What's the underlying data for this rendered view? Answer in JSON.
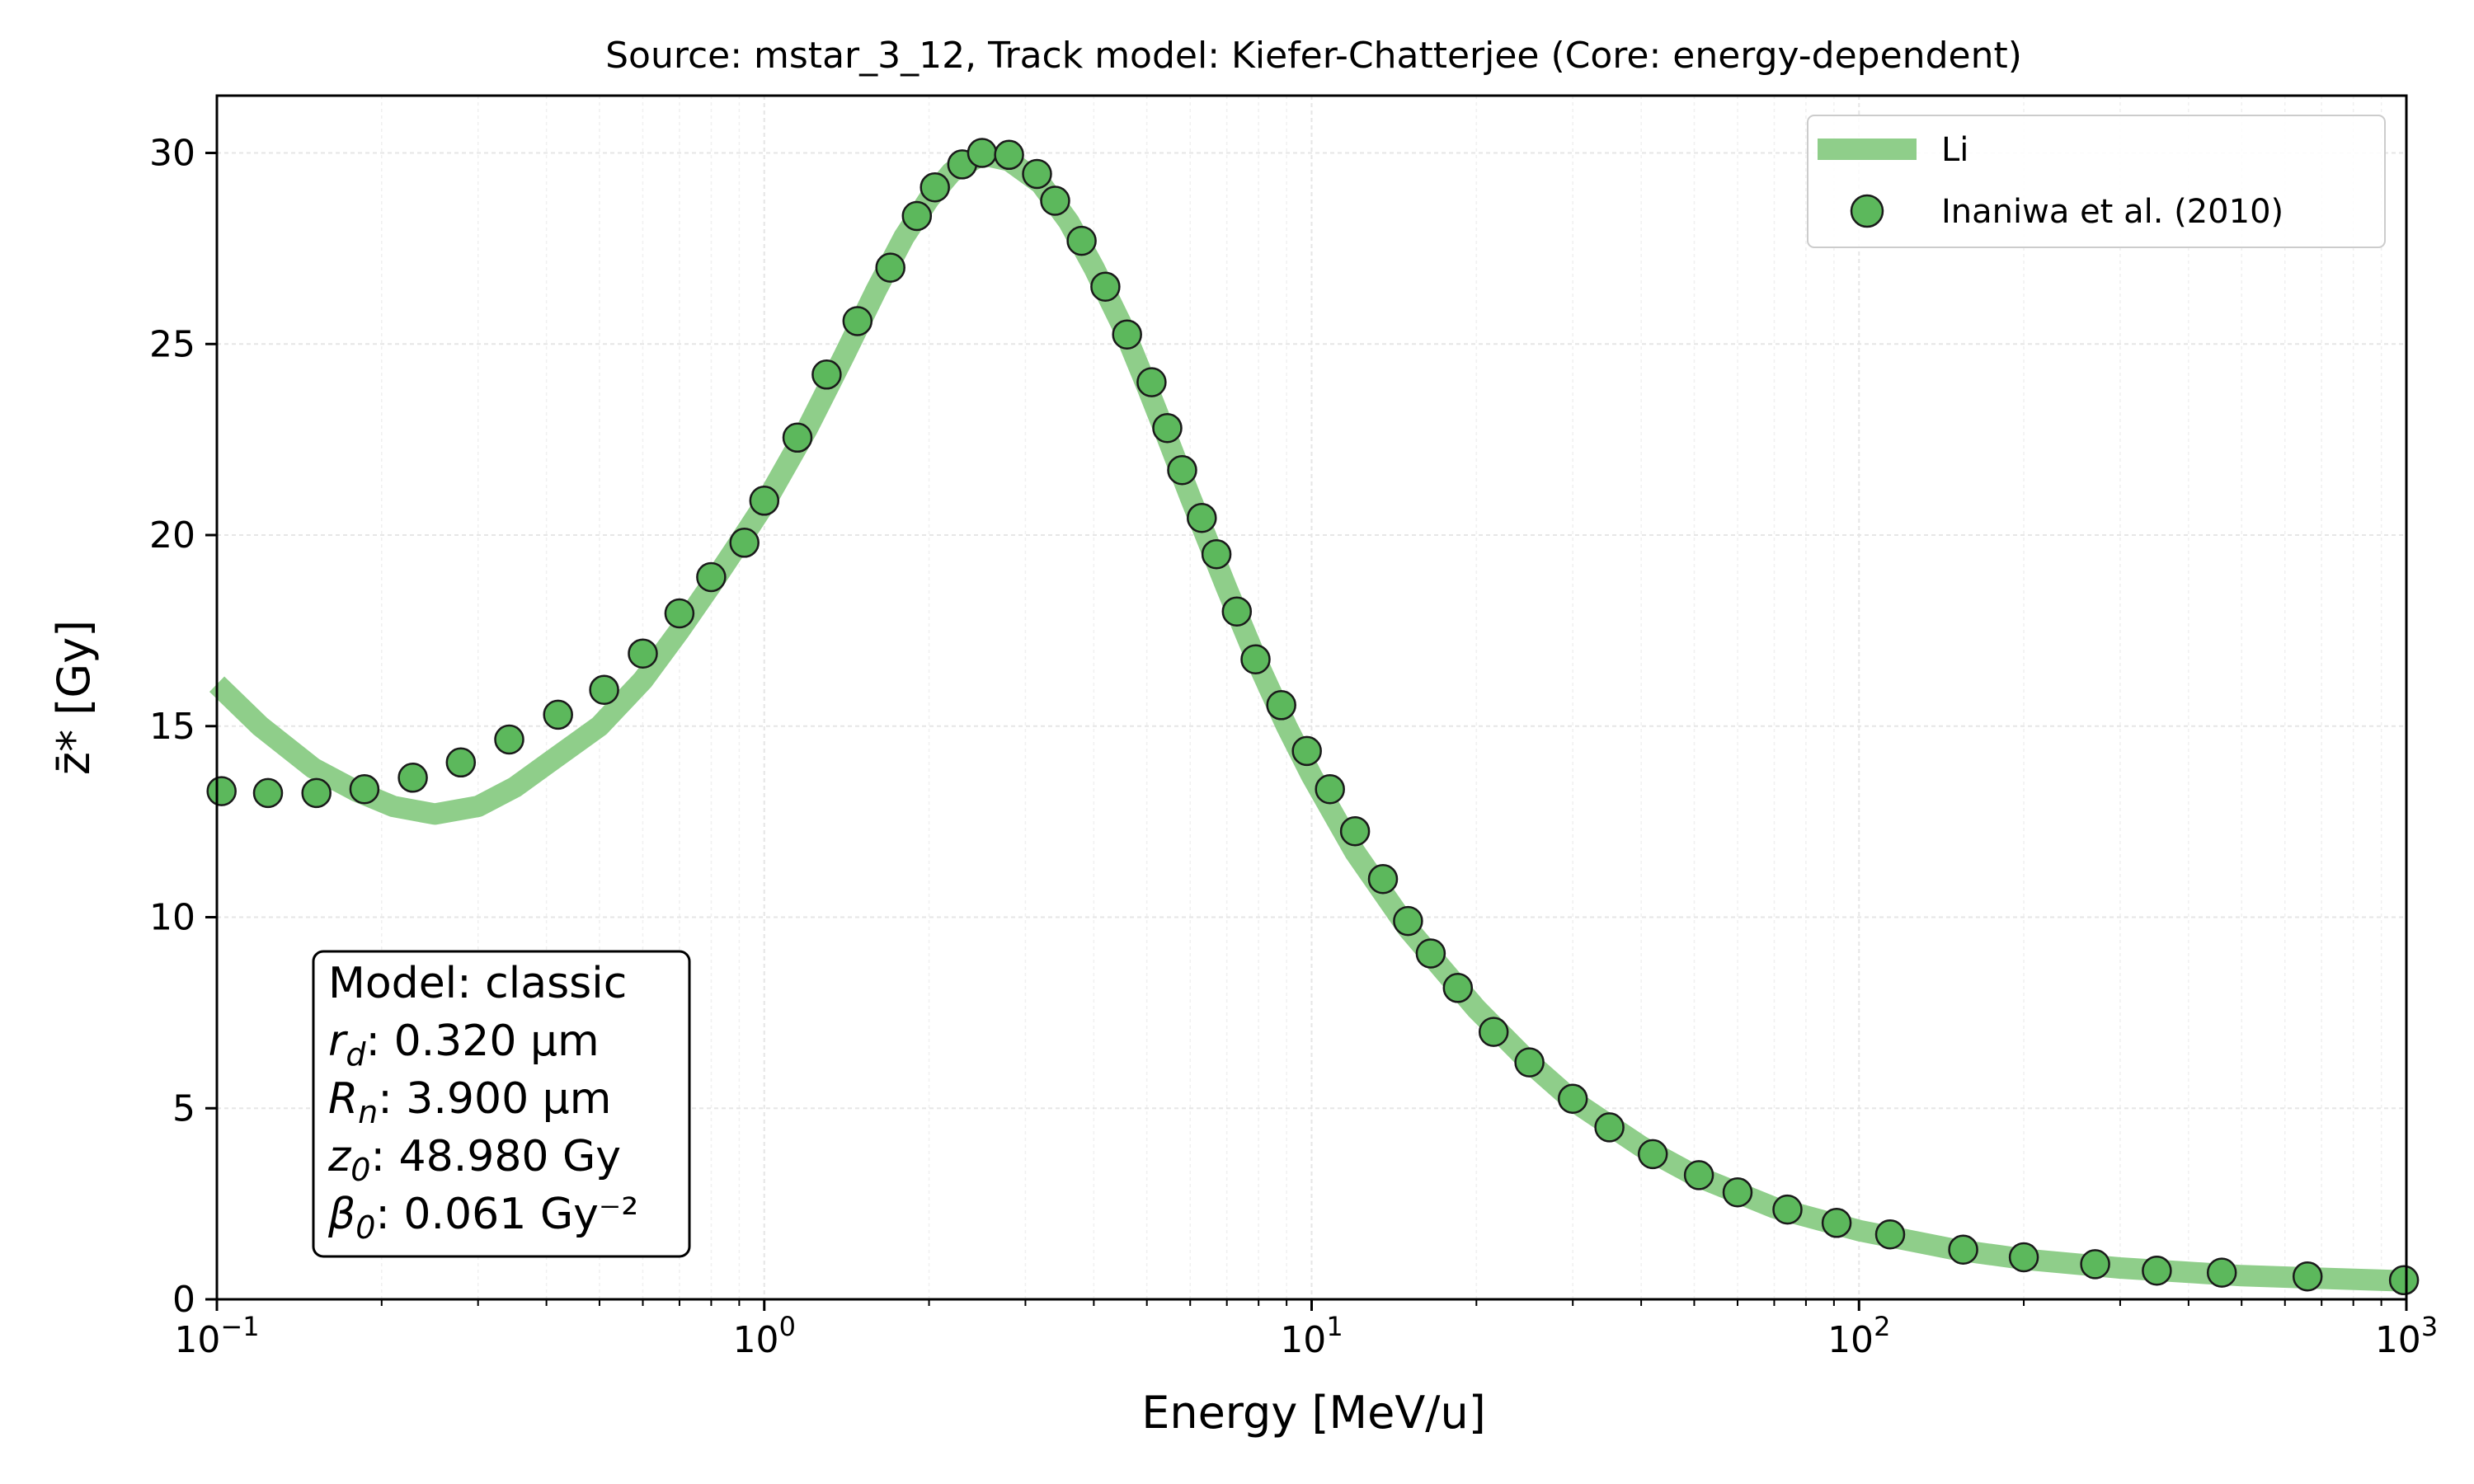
{
  "chart_data": {
    "type": "line",
    "title": "Source: mstar_3_12, Track model: Kiefer-Chatterjee (Core: energy-dependent)",
    "xlabel": "Energy [MeV/u]",
    "ylabel": "z̄* [Gy]",
    "x_scale": "log",
    "xlim": [
      0.1,
      1000
    ],
    "ylim": [
      0,
      31.5
    ],
    "x_ticks": [
      {
        "value": 0.1,
        "base": "10",
        "exp": "−1"
      },
      {
        "value": 1,
        "base": "10",
        "exp": "0"
      },
      {
        "value": 10,
        "base": "10",
        "exp": "1"
      },
      {
        "value": 100,
        "base": "10",
        "exp": "2"
      },
      {
        "value": 1000,
        "base": "10",
        "exp": "3"
      }
    ],
    "y_ticks": [
      0,
      5,
      10,
      15,
      20,
      25,
      30
    ],
    "grid": true,
    "legend_position": "top-right",
    "series": [
      {
        "name": "Li",
        "kind": "line",
        "color": "#8fce8a",
        "points": [
          [
            0.1,
            16.1
          ],
          [
            0.12,
            15.0
          ],
          [
            0.15,
            13.9
          ],
          [
            0.18,
            13.3
          ],
          [
            0.21,
            12.9
          ],
          [
            0.25,
            12.7
          ],
          [
            0.3,
            12.9
          ],
          [
            0.35,
            13.4
          ],
          [
            0.4,
            14.0
          ],
          [
            0.5,
            15.0
          ],
          [
            0.6,
            16.2
          ],
          [
            0.7,
            17.5
          ],
          [
            0.8,
            18.7
          ],
          [
            0.9,
            19.8
          ],
          [
            1.0,
            20.8
          ],
          [
            1.2,
            22.8
          ],
          [
            1.4,
            24.7
          ],
          [
            1.6,
            26.4
          ],
          [
            1.8,
            27.8
          ],
          [
            2.0,
            28.8
          ],
          [
            2.2,
            29.5
          ],
          [
            2.5,
            29.95
          ],
          [
            2.8,
            29.8
          ],
          [
            3.2,
            29.2
          ],
          [
            3.6,
            28.2
          ],
          [
            4.0,
            27.0
          ],
          [
            4.5,
            25.5
          ],
          [
            5.0,
            23.9
          ],
          [
            5.5,
            22.4
          ],
          [
            6.0,
            21.0
          ],
          [
            7.0,
            18.6
          ],
          [
            8.0,
            16.6
          ],
          [
            9.0,
            15.0
          ],
          [
            10,
            13.7
          ],
          [
            12,
            11.7
          ],
          [
            15,
            9.7
          ],
          [
            20,
            7.6
          ],
          [
            25,
            6.2
          ],
          [
            30,
            5.2
          ],
          [
            40,
            4.0
          ],
          [
            50,
            3.25
          ],
          [
            70,
            2.4
          ],
          [
            100,
            1.8
          ],
          [
            150,
            1.3
          ],
          [
            200,
            1.05
          ],
          [
            300,
            0.82
          ],
          [
            500,
            0.62
          ],
          [
            700,
            0.55
          ],
          [
            1000,
            0.48
          ]
        ]
      },
      {
        "name": "Inaniwa et al. (2010)",
        "kind": "scatter",
        "color": "#5cb85c",
        "edge_color": "#1a1a1a",
        "points": [
          [
            0.102,
            13.3
          ],
          [
            0.124,
            13.25
          ],
          [
            0.152,
            13.25
          ],
          [
            0.186,
            13.35
          ],
          [
            0.228,
            13.65
          ],
          [
            0.279,
            14.05
          ],
          [
            0.342,
            14.65
          ],
          [
            0.42,
            15.3
          ],
          [
            0.51,
            15.95
          ],
          [
            0.6,
            16.9
          ],
          [
            0.7,
            17.95
          ],
          [
            0.8,
            18.9
          ],
          [
            0.92,
            19.8
          ],
          [
            1.0,
            20.9
          ],
          [
            1.15,
            22.55
          ],
          [
            1.3,
            24.2
          ],
          [
            1.48,
            25.6
          ],
          [
            1.7,
            27.0
          ],
          [
            1.9,
            28.35
          ],
          [
            2.05,
            29.1
          ],
          [
            2.3,
            29.7
          ],
          [
            2.5,
            30.0
          ],
          [
            2.8,
            29.95
          ],
          [
            3.15,
            29.45
          ],
          [
            3.4,
            28.75
          ],
          [
            3.8,
            27.7
          ],
          [
            4.2,
            26.5
          ],
          [
            4.6,
            25.25
          ],
          [
            5.1,
            24.0
          ],
          [
            5.45,
            22.8
          ],
          [
            5.8,
            21.7
          ],
          [
            6.3,
            20.45
          ],
          [
            6.7,
            19.5
          ],
          [
            7.3,
            18.0
          ],
          [
            7.9,
            16.75
          ],
          [
            8.8,
            15.55
          ],
          [
            9.8,
            14.35
          ],
          [
            10.8,
            13.35
          ],
          [
            12.0,
            12.25
          ],
          [
            13.5,
            11.0
          ],
          [
            15.0,
            9.9
          ],
          [
            16.5,
            9.05
          ],
          [
            18.5,
            8.15
          ],
          [
            21.5,
            7.0
          ],
          [
            25,
            6.2
          ],
          [
            30,
            5.25
          ],
          [
            35,
            4.5
          ],
          [
            42,
            3.8
          ],
          [
            51,
            3.25
          ],
          [
            60,
            2.8
          ],
          [
            74,
            2.35
          ],
          [
            91,
            2.0
          ],
          [
            114,
            1.7
          ],
          [
            155,
            1.3
          ],
          [
            200,
            1.1
          ],
          [
            270,
            0.92
          ],
          [
            350,
            0.75
          ],
          [
            460,
            0.7
          ],
          [
            660,
            0.6
          ],
          [
            990,
            0.5
          ]
        ]
      }
    ],
    "parameter_box": {
      "line1": "Model: classic",
      "line2_var": "r",
      "line2_sub": "d",
      "line2_value": ": 0.320 µm",
      "line3_var": "R",
      "line3_sub": "n",
      "line3_value": ": 3.900 µm",
      "line4_var": "z",
      "line4_sub": "0",
      "line4_value": ": 48.980 Gy",
      "line5_var": "β",
      "line5_sub": "0",
      "line5_value": ": 0.061 Gy⁻²"
    }
  }
}
